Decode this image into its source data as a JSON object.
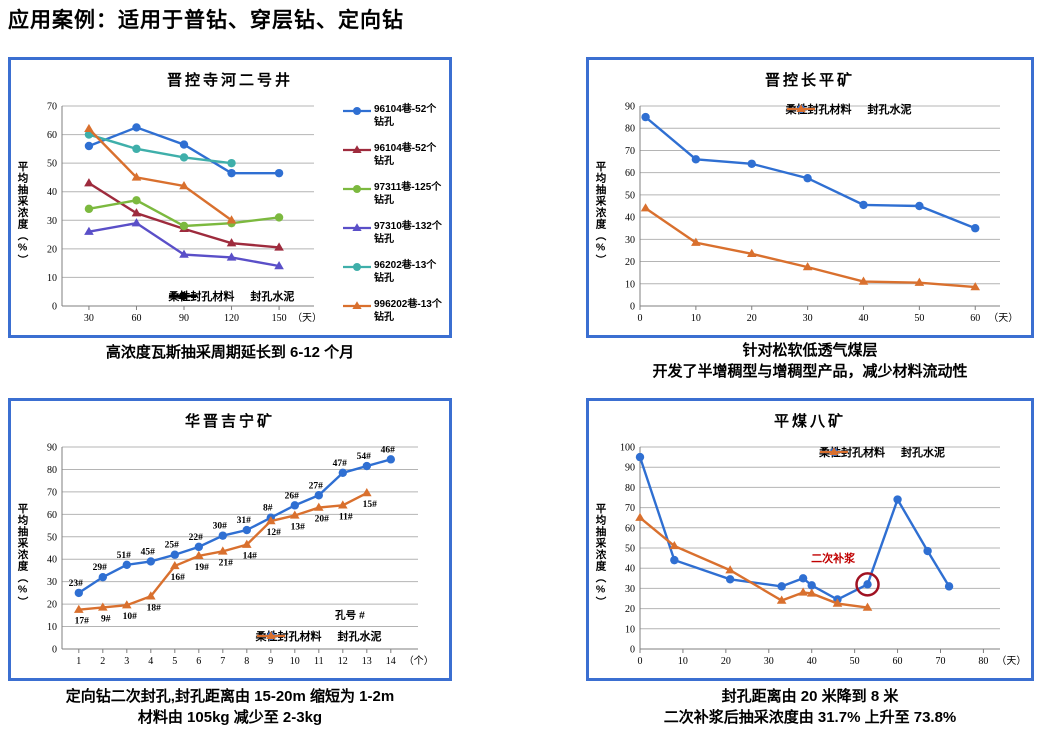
{
  "page_title": "应用案例：适用于普钻、穿层钻、定向钻",
  "panels": [
    {
      "caption_lines": [
        "高浓度瓦斯抽采周期延长到 6-12 个月"
      ]
    },
    {
      "caption_lines": [
        "针对松软低透气煤层",
        "开发了半增稠型与增稠型产品，减少材料流动性"
      ]
    },
    {
      "caption_lines": [
        "定向钻二次封孔,封孔距离由 15-20m 缩短为 1-2m",
        "材料由 105kg 减少至 2-3kg"
      ]
    },
    {
      "caption_lines": [
        "封孔距离由 20 米降到 8 米",
        "二次补浆后抽采浓度由 31.7% 上升至 73.8%"
      ]
    }
  ],
  "colors": {
    "panel_border": "#3b6fd1",
    "flexible_material_blue": "#2f6fd2",
    "sealing_cement_orange": "#d9702e",
    "annotation_red": "#c00000"
  },
  "chart_data": [
    {
      "type": "line",
      "title": "晋控寺河二号井",
      "ylabel": "平均抽采浓度（%）",
      "x_unit": "（天）",
      "xticks": [
        30,
        60,
        90,
        120,
        150
      ],
      "xlim": [
        13,
        167
      ],
      "ylim": [
        0,
        70
      ],
      "ytick_step": 10,
      "grid": true,
      "legend_position": "right",
      "series": [
        {
          "name": "96104巷-52个钻孔",
          "color": "#2f6fd2",
          "marker": "circle",
          "x": [
            30,
            60,
            90,
            120,
            150
          ],
          "y": [
            56,
            62.5,
            56.5,
            46.5,
            46.5
          ]
        },
        {
          "name": "96104巷-52个钻孔",
          "color": "#9e2b3d",
          "marker": "triangle",
          "x": [
            30,
            60,
            90,
            120,
            150
          ],
          "y": [
            43,
            32.5,
            27,
            22,
            20.5
          ]
        },
        {
          "name": "97311巷-125个钻孔",
          "color": "#7cb93f",
          "marker": "circle",
          "x": [
            30,
            60,
            90,
            120,
            150
          ],
          "y": [
            34,
            37,
            28,
            29,
            31
          ]
        },
        {
          "name": "97310巷-132个钻孔",
          "color": "#5a4fc8",
          "marker": "triangle",
          "x": [
            30,
            60,
            90,
            120,
            150
          ],
          "y": [
            26,
            29,
            18,
            17,
            14
          ]
        },
        {
          "name": "96202巷-13个钻孔",
          "color": "#3fafaa",
          "marker": "circle",
          "x": [
            30,
            60,
            90,
            120
          ],
          "y": [
            60,
            55,
            52,
            50
          ]
        },
        {
          "name": "996202巷-13个钻孔",
          "color": "#d9702e",
          "marker": "triangle",
          "x": [
            30,
            60,
            90,
            120
          ],
          "y": [
            62,
            45,
            42,
            30
          ]
        }
      ],
      "inner_legend": {
        "color": "#000000",
        "pos": {
          "left": "44%",
          "top": "82%"
        },
        "items": [
          {
            "label": "柔性封孔材料",
            "marker": "circle"
          },
          {
            "label": "封孔水泥",
            "marker": "triangle"
          }
        ]
      }
    },
    {
      "type": "line",
      "title": "晋控长平矿",
      "ylabel": "平均抽采浓度（%）",
      "x_unit": "（天）",
      "xticks": [
        0,
        10,
        20,
        30,
        40,
        50,
        60
      ],
      "xlim": [
        0,
        63
      ],
      "ylim": [
        0,
        90
      ],
      "ytick_step": 10,
      "grid": true,
      "legend_pos": {
        "left": "42%",
        "top": "2%"
      },
      "series": [
        {
          "name": "柔性封孔材料",
          "color": "#2f6fd2",
          "marker": "circle",
          "x": [
            1,
            10,
            20,
            30,
            40,
            50,
            60
          ],
          "y": [
            85,
            66,
            64,
            57.5,
            45.5,
            45,
            35
          ]
        },
        {
          "name": "封孔水泥",
          "color": "#d9702e",
          "marker": "triangle",
          "x": [
            1,
            10,
            20,
            30,
            40,
            50,
            60
          ],
          "y": [
            44,
            28.5,
            23.5,
            17.5,
            11,
            10.5,
            8.5
          ]
        }
      ]
    },
    {
      "type": "line",
      "title": "华晋吉宁矿",
      "ylabel": "平均抽采浓度（%）",
      "x_unit": "（个）",
      "xticks": [
        1,
        2,
        3,
        4,
        5,
        6,
        7,
        8,
        9,
        10,
        11,
        12,
        13,
        14
      ],
      "xlim": [
        0.3,
        14.8
      ],
      "ylim": [
        0,
        90
      ],
      "ytick_step": 10,
      "grid": true,
      "legend_pos": {
        "left": "54%",
        "top": "81%"
      },
      "series": [
        {
          "name": "柔性封孔材料",
          "color": "#2f6fd2",
          "marker": "circle",
          "label_side": "above",
          "x": [
            1,
            2,
            3,
            4,
            5,
            6,
            7,
            8,
            9,
            10,
            11,
            12,
            13,
            14
          ],
          "y": [
            25,
            32,
            37.5,
            39,
            42,
            45.5,
            50.5,
            53,
            58.5,
            64,
            68.5,
            78.5,
            81.5,
            84.5
          ],
          "labels": [
            "23#",
            "29#",
            "51#",
            "45#",
            "25#",
            "22#",
            "30#",
            "31#",
            "8#",
            "26#",
            "27#",
            "47#",
            "54#",
            "46#"
          ]
        },
        {
          "name": "封孔水泥",
          "color": "#d9702e",
          "marker": "triangle",
          "label_side": "below",
          "x": [
            1,
            2,
            3,
            4,
            5,
            6,
            7,
            8,
            9,
            10,
            11,
            12,
            13
          ],
          "y": [
            17.5,
            18.5,
            19.5,
            23.5,
            37,
            41.5,
            43.5,
            46.5,
            57,
            59.5,
            63,
            64,
            69.5
          ],
          "labels": [
            "17#",
            "9#",
            "10#",
            "18#",
            "16#",
            "19#",
            "21#",
            "14#",
            "12#",
            "13#",
            "20#",
            "11#",
            "15#"
          ]
        }
      ],
      "annotations": [
        {
          "type": "text",
          "text": "孔号 #",
          "x": 12.3,
          "y": 13.5,
          "color": "#000000",
          "size": 10.5
        }
      ]
    },
    {
      "type": "line",
      "title": "平煤八矿",
      "ylabel": "平均抽采浓度（%）",
      "x_unit": "（天）",
      "xticks": [
        0,
        10,
        20,
        30,
        40,
        50,
        60,
        70,
        80
      ],
      "xlim": [
        0,
        82
      ],
      "ylim": [
        0,
        100
      ],
      "ytick_step": 10,
      "grid": true,
      "legend_pos": {
        "left": "50%",
        "top": "3%"
      },
      "series": [
        {
          "name": "柔性封孔材料",
          "color": "#2f6fd2",
          "marker": "circle",
          "x": [
            0,
            8,
            21,
            33,
            38,
            40,
            46,
            53,
            60,
            67,
            72
          ],
          "y": [
            95,
            44,
            34.5,
            31,
            35,
            31.5,
            24.5,
            32,
            74,
            48.5,
            31
          ]
        },
        {
          "name": "封孔水泥",
          "color": "#d9702e",
          "marker": "triangle",
          "x": [
            0,
            8,
            21,
            33,
            38,
            40,
            46,
            53
          ],
          "y": [
            65,
            51,
            39,
            24,
            28,
            27.5,
            22.5,
            20.5
          ]
        }
      ],
      "annotations": [
        {
          "type": "text",
          "text": "二次补浆",
          "x": 45,
          "y": 43,
          "color": "#c00000",
          "size": 11
        },
        {
          "type": "circle",
          "x": 53,
          "y": 32,
          "r": 11,
          "color": "#a01222",
          "width": 2.5
        }
      ]
    }
  ]
}
